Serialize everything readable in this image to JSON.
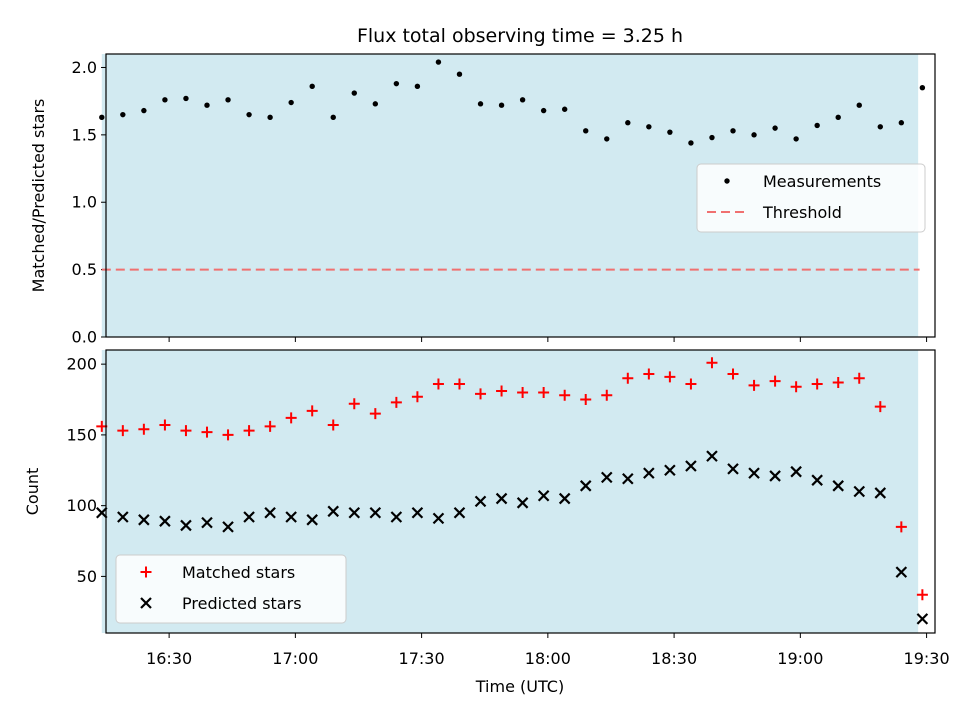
{
  "chart_data": {
    "title": "Flux total observing time = 3.25 h",
    "xlabel": "Time (UTC)",
    "x_ticks": [
      "16:30",
      "17:00",
      "17:30",
      "18:00",
      "18:30",
      "19:00",
      "19:30"
    ],
    "xlim": [
      "16:15",
      "19:32"
    ],
    "shaded_interval": [
      "16:14",
      "19:28"
    ],
    "shade_color": "#add8e6",
    "panels": [
      {
        "type": "scatter",
        "ylabel": "Matched/Predicted stars",
        "ylim": [
          0.0,
          2.1
        ],
        "y_ticks": [
          "0.0",
          "0.5",
          "1.0",
          "1.5",
          "2.0"
        ],
        "legend_position": "center-right",
        "threshold": {
          "name": "Threshold",
          "value": 0.5,
          "color": "#f07070"
        },
        "series": [
          {
            "name": "Measurements",
            "color": "#000000",
            "marker": "dot",
            "x": [
              "16:14",
              "16:19",
              "16:24",
              "16:29",
              "16:34",
              "16:39",
              "16:44",
              "16:49",
              "16:54",
              "16:59",
              "17:04",
              "17:09",
              "17:14",
              "17:19",
              "17:24",
              "17:29",
              "17:34",
              "17:39",
              "17:44",
              "17:49",
              "17:54",
              "17:59",
              "18:04",
              "18:09",
              "18:14",
              "18:19",
              "18:24",
              "18:29",
              "18:34",
              "18:39",
              "18:44",
              "18:49",
              "18:54",
              "18:59",
              "19:04",
              "19:09",
              "19:14",
              "19:19",
              "19:24",
              "19:29"
            ],
            "y": [
              1.63,
              1.65,
              1.68,
              1.76,
              1.77,
              1.72,
              1.76,
              1.65,
              1.63,
              1.74,
              1.86,
              1.63,
              1.81,
              1.73,
              1.88,
              1.86,
              2.04,
              1.95,
              1.73,
              1.72,
              1.76,
              1.68,
              1.69,
              1.53,
              1.47,
              1.59,
              1.56,
              1.52,
              1.44,
              1.48,
              1.53,
              1.5,
              1.55,
              1.47,
              1.57,
              1.63,
              1.72,
              1.56,
              1.59,
              1.85
            ]
          }
        ]
      },
      {
        "type": "scatter",
        "ylabel": "Count",
        "ylim": [
          10,
          210
        ],
        "y_ticks": [
          "50",
          "100",
          "150",
          "200"
        ],
        "legend_position": "lower-left",
        "series": [
          {
            "name": "Matched stars",
            "color": "#ff0000",
            "marker": "plus",
            "x": [
              "16:14",
              "16:19",
              "16:24",
              "16:29",
              "16:34",
              "16:39",
              "16:44",
              "16:49",
              "16:54",
              "16:59",
              "17:04",
              "17:09",
              "17:14",
              "17:19",
              "17:24",
              "17:29",
              "17:34",
              "17:39",
              "17:44",
              "17:49",
              "17:54",
              "17:59",
              "18:04",
              "18:09",
              "18:14",
              "18:19",
              "18:24",
              "18:29",
              "18:34",
              "18:39",
              "18:44",
              "18:49",
              "18:54",
              "18:59",
              "19:04",
              "19:09",
              "19:14",
              "19:19",
              "19:24",
              "19:29"
            ],
            "y": [
              156,
              153,
              154,
              157,
              153,
              152,
              150,
              153,
              156,
              162,
              167,
              157,
              172,
              165,
              173,
              177,
              186,
              186,
              179,
              181,
              180,
              180,
              178,
              175,
              178,
              190,
              193,
              191,
              186,
              201,
              193,
              185,
              188,
              184,
              186,
              187,
              190,
              170,
              85,
              37
            ]
          },
          {
            "name": "Predicted stars",
            "color": "#000000",
            "marker": "x",
            "x": [
              "16:14",
              "16:19",
              "16:24",
              "16:29",
              "16:34",
              "16:39",
              "16:44",
              "16:49",
              "16:54",
              "16:59",
              "17:04",
              "17:09",
              "17:14",
              "17:19",
              "17:24",
              "17:29",
              "17:34",
              "17:39",
              "17:44",
              "17:49",
              "17:54",
              "17:59",
              "18:04",
              "18:09",
              "18:14",
              "18:19",
              "18:24",
              "18:29",
              "18:34",
              "18:39",
              "18:44",
              "18:49",
              "18:54",
              "18:59",
              "19:04",
              "19:09",
              "19:14",
              "19:19",
              "19:24",
              "19:29"
            ],
            "y": [
              95,
              92,
              90,
              89,
              86,
              88,
              85,
              92,
              95,
              92,
              90,
              96,
              95,
              95,
              92,
              95,
              91,
              95,
              103,
              105,
              102,
              107,
              105,
              114,
              120,
              119,
              123,
              125,
              128,
              135,
              126,
              123,
              121,
              124,
              118,
              114,
              110,
              109,
              53,
              20
            ]
          }
        ]
      }
    ]
  }
}
